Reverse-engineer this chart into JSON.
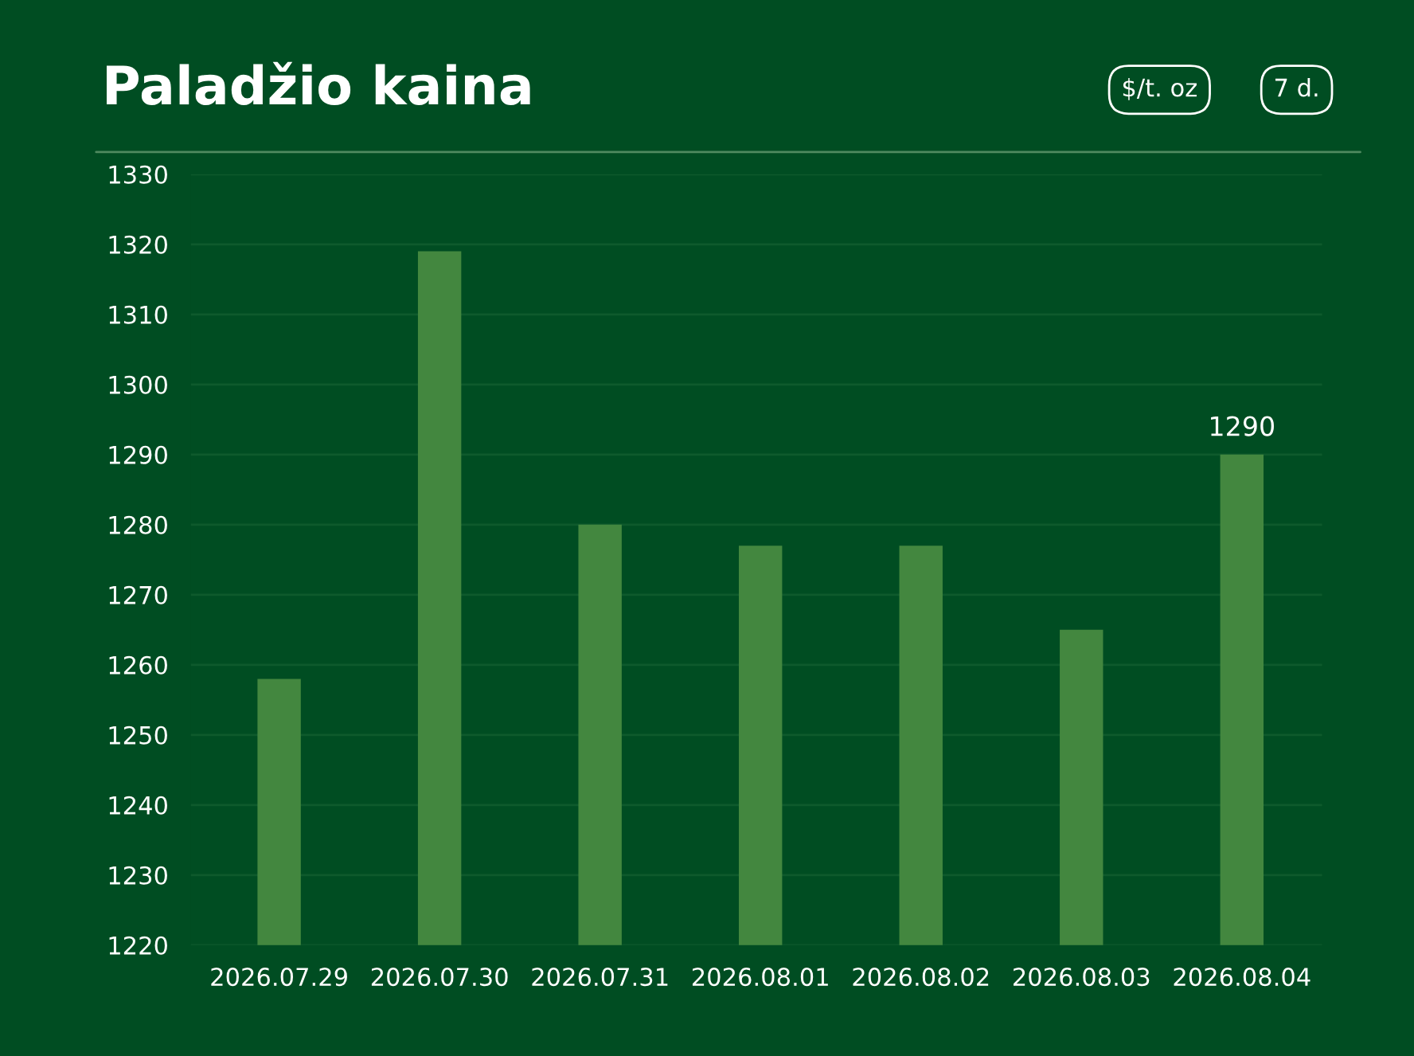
{
  "chart_data": {
    "type": "bar",
    "title": "Paladžio kaina",
    "categories": [
      "2026.07.29",
      "2026.07.30",
      "2026.07.31",
      "2026.08.01",
      "2026.08.02",
      "2026.08.03",
      "2026.08.04"
    ],
    "series": [
      {
        "color": "#43873f",
        "values": [
          1258,
          1319,
          1280,
          1277,
          1277,
          1265,
          1290
        ],
        "value_labels": [
          null,
          null,
          null,
          null,
          null,
          null,
          "1290"
        ]
      }
    ],
    "annotations": [
      "$/t. oz",
      "7 d."
    ],
    "ylim": [
      1220,
      1330
    ],
    "yticks": [
      1220,
      1230,
      1240,
      1250,
      1260,
      1270,
      1280,
      1290,
      1300,
      1310,
      1320,
      1330
    ],
    "grid": "y",
    "legend": false
  }
}
